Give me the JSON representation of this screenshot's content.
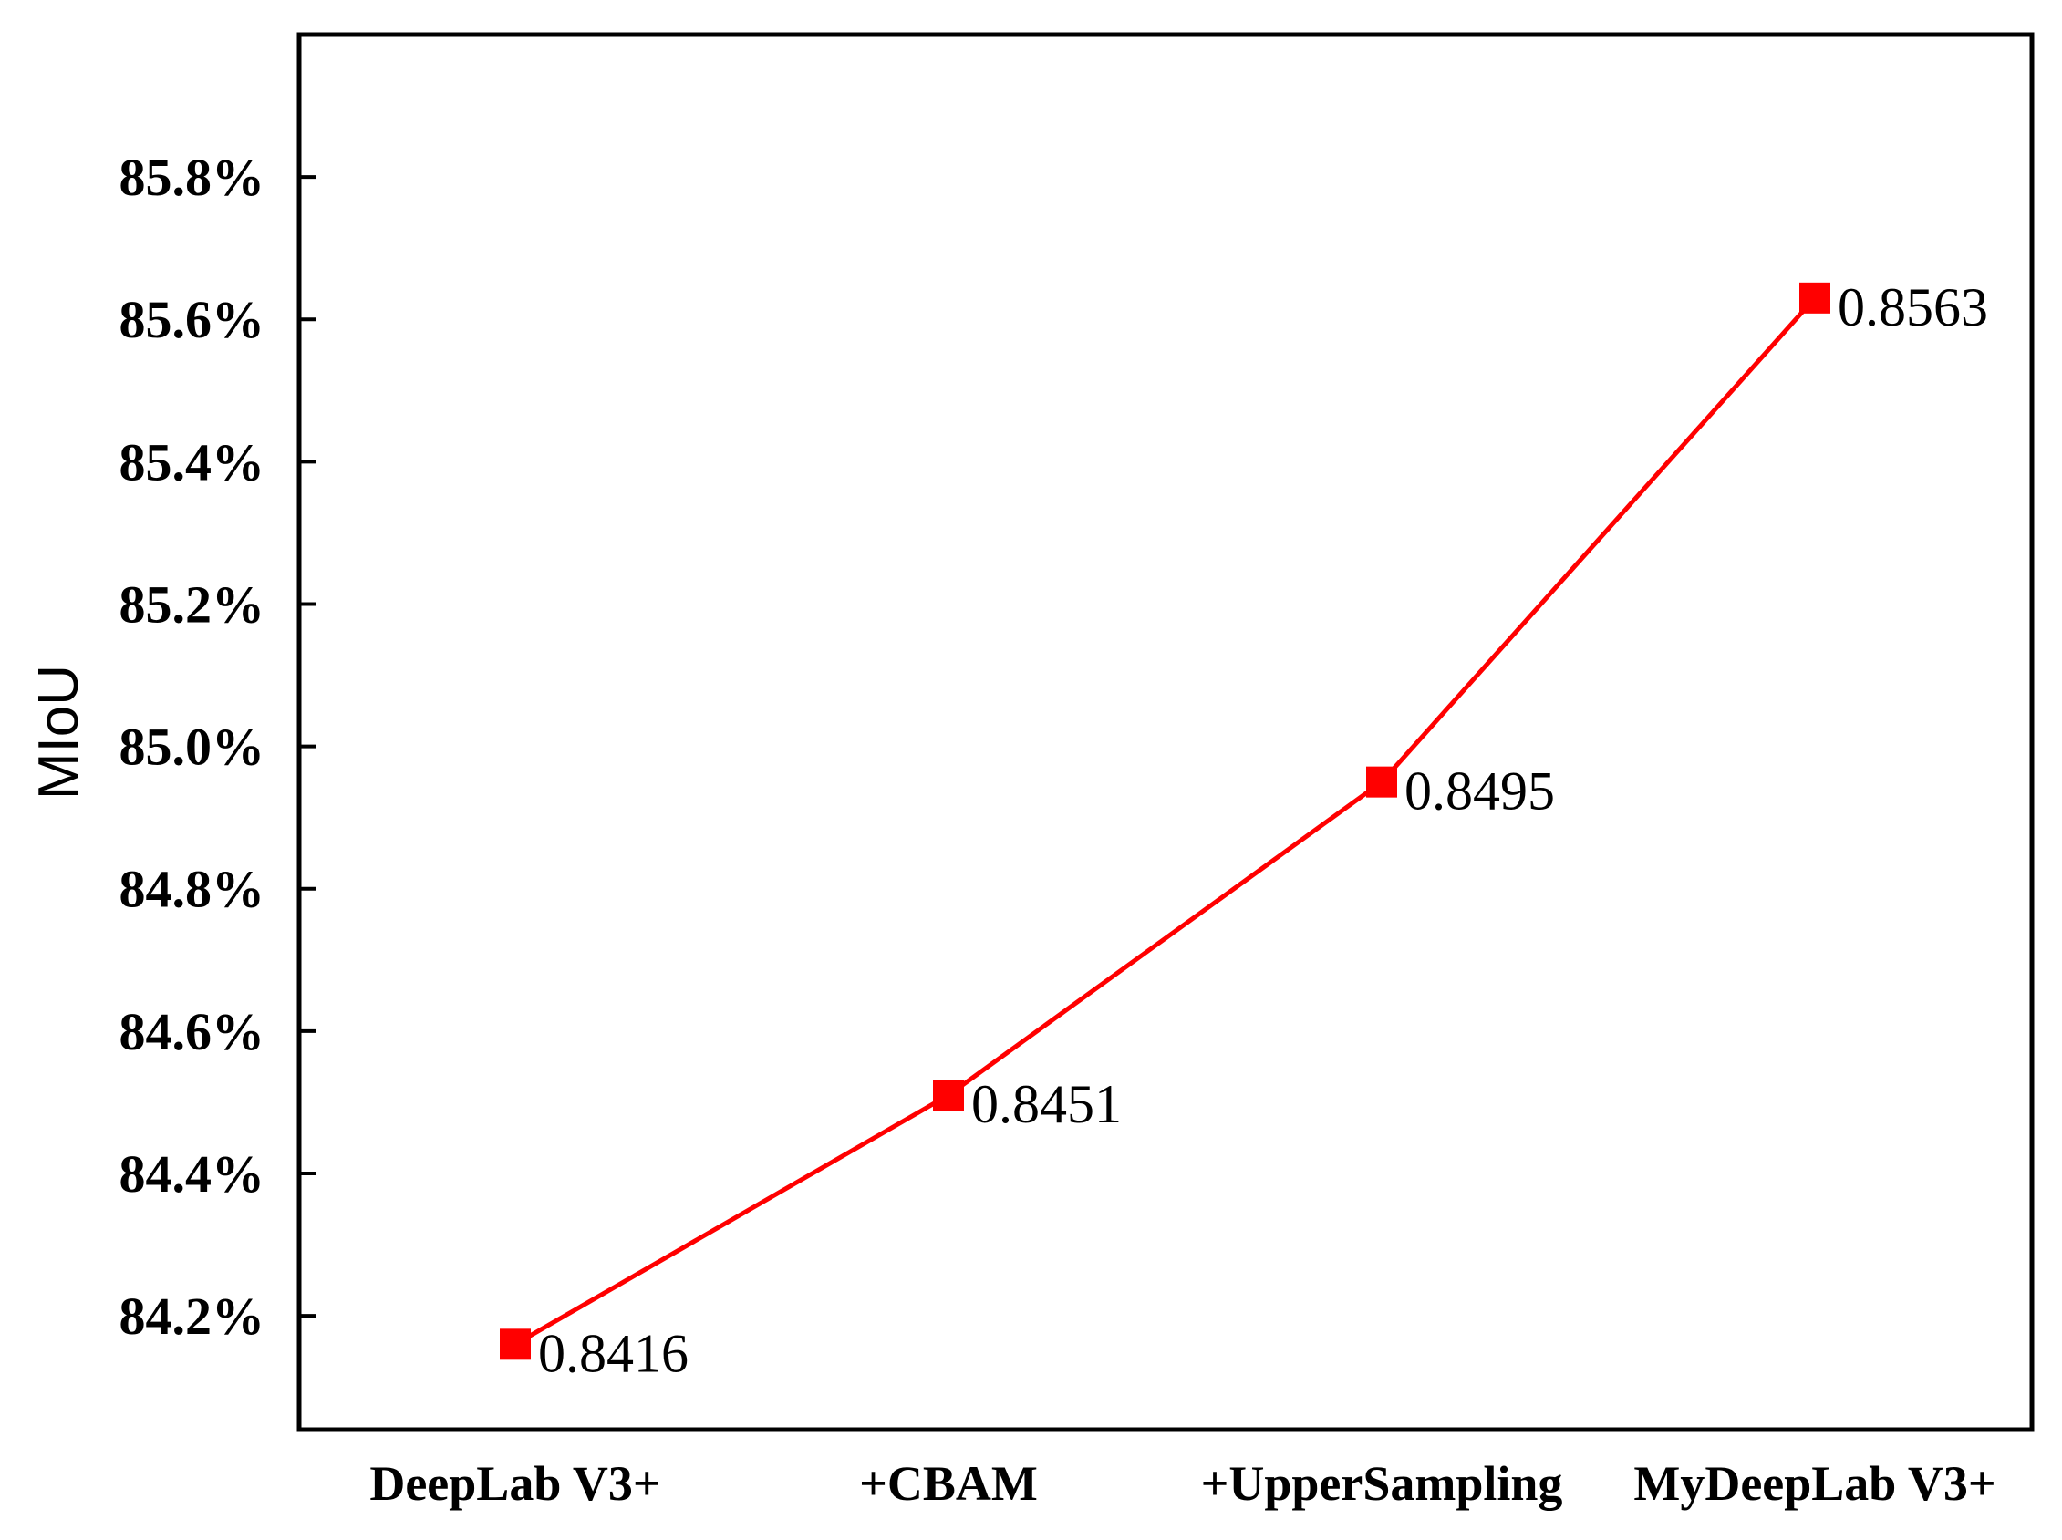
{
  "chart_data": {
    "type": "line",
    "title": "",
    "xlabel": "",
    "ylabel": "MIoU",
    "categories": [
      "DeepLab V3+",
      "+CBAM",
      "+UpperSampling",
      "MyDeepLab V3+"
    ],
    "series": [
      {
        "values": [
          0.8416,
          0.8451,
          0.8495,
          0.8563
        ],
        "data_labels": [
          "0.8416",
          "0.8451",
          "0.8495",
          "0.8563"
        ],
        "color": "#ff0000",
        "marker": "square"
      }
    ],
    "ylim": [
      0.8404,
      0.86
    ],
    "yticks": [
      0.842,
      0.844,
      0.846,
      0.848,
      0.85,
      0.852,
      0.854,
      0.856,
      0.858
    ],
    "ytick_labels": [
      "84.2%",
      "84.4%",
      "84.6%",
      "84.8%",
      "85.0%",
      "85.2%",
      "85.4%",
      "85.6%",
      "85.8%"
    ],
    "grid": false,
    "legend": "none"
  }
}
